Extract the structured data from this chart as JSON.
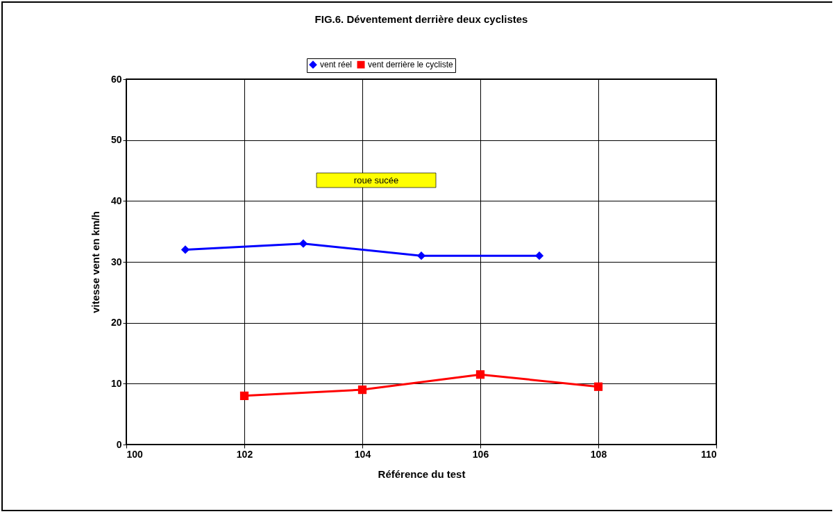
{
  "chart_data": {
    "type": "line",
    "title": "FIG.6. Déventement derrière deux cyclistes",
    "xlabel": "Référence du test",
    "ylabel": "vitesse vent en km/h",
    "annotations": [
      "roue sucée"
    ],
    "series": [
      {
        "name": "vent réel",
        "color": "#0000ff",
        "marker": "diamond",
        "x": [
          101,
          103,
          105,
          107
        ],
        "values": [
          32,
          33,
          31,
          31
        ]
      },
      {
        "name": "vent derrière le cycliste",
        "color": "#ff0000",
        "marker": "square",
        "x": [
          102,
          104,
          106,
          108
        ],
        "values": [
          8,
          9,
          11.5,
          9.5
        ]
      }
    ],
    "xlim": [
      100,
      110
    ],
    "xticks": [
      100,
      102,
      104,
      106,
      108,
      110
    ],
    "ylim": [
      0,
      60
    ],
    "yticks": [
      0,
      10,
      20,
      30,
      40,
      50,
      60
    ],
    "grid": true,
    "legend": "top",
    "line_style": "solid"
  }
}
